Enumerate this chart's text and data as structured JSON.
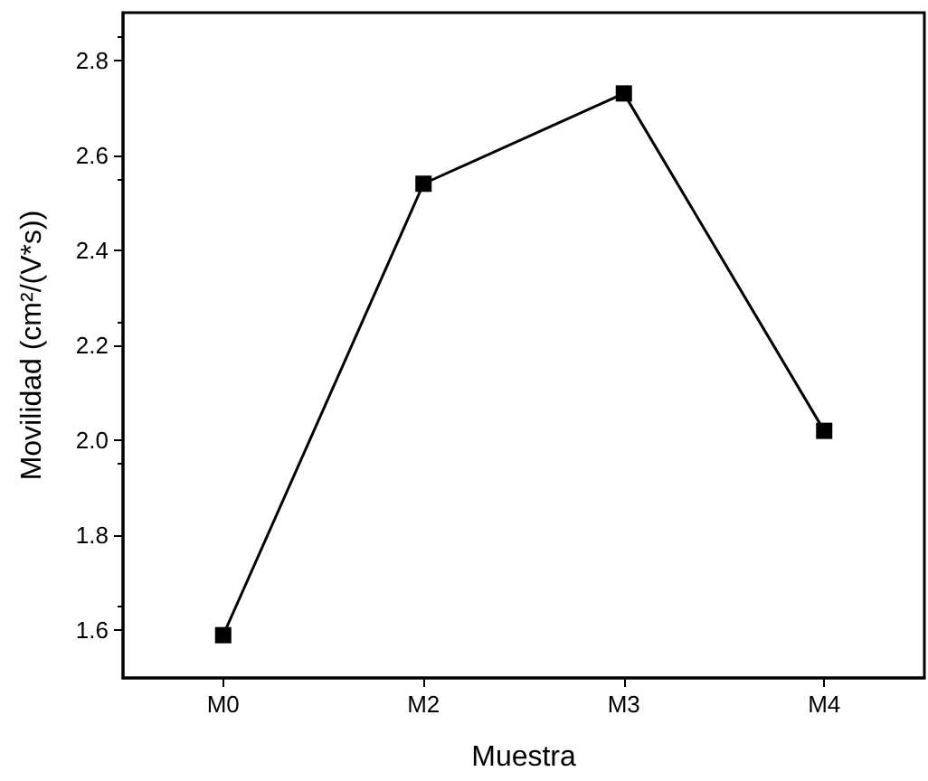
{
  "chart_data": {
    "type": "line",
    "xlabel": "Muestra",
    "ylabel": "Movilidad (cm²/(V*s))",
    "categories": [
      "M0",
      "M2",
      "M3",
      "M4"
    ],
    "series": [
      {
        "color": "#000000",
        "values": [
          1.59,
          2.54,
          2.73,
          2.02
        ]
      }
    ],
    "ylim": [
      1.5,
      2.9
    ],
    "yticks": [
      1.6,
      1.8,
      {
        "value": 2,
        "label": "2.0"
      },
      2.2,
      2.4,
      2.6,
      2.8
    ],
    "grid": false,
    "marker": "square",
    "line_style": "solid"
  }
}
